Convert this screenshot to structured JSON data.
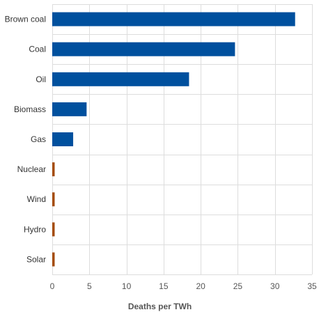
{
  "chart_data": {
    "type": "bar",
    "orientation": "horizontal",
    "categories": [
      "Brown coal",
      "Coal",
      "Oil",
      "Biomass",
      "Gas",
      "Nuclear",
      "Wind",
      "Hydro",
      "Solar"
    ],
    "values": [
      32.72,
      24.62,
      18.43,
      4.63,
      2.82,
      0.07,
      0.04,
      0.02,
      0.02
    ],
    "colors": [
      "#00509e",
      "#00509e",
      "#00509e",
      "#00509e",
      "#00509e",
      "#a44c0b",
      "#a44c0b",
      "#a44c0b",
      "#a44c0b"
    ],
    "xlabel": "Deaths per TWh",
    "ylabel": "",
    "xlim": [
      0,
      35
    ],
    "xticks": [
      0,
      5,
      10,
      15,
      20,
      25,
      30,
      35
    ],
    "grid": true
  }
}
